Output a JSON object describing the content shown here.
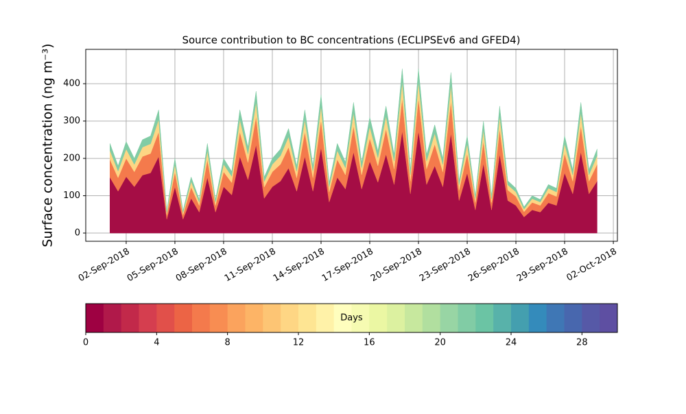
{
  "chart_data": {
    "type": "stacked_area",
    "title": "Source contribution to BC concentrations (ECLIPSEv6 and GFED4)",
    "y_label": "Surface concentration (ng m⁻³)",
    "x": [
      0,
      0.5,
      1,
      1.5,
      2,
      2.5,
      3,
      3.5,
      4,
      4.5,
      5,
      5.5,
      6,
      6.5,
      7,
      7.5,
      8,
      8.5,
      9,
      9.5,
      10,
      10.5,
      11,
      11.5,
      12,
      12.5,
      13,
      13.5,
      14,
      14.5,
      15,
      15.5,
      16,
      16.5,
      17,
      17.5,
      18,
      18.5,
      19,
      19.5,
      20,
      20.5,
      21,
      21.5,
      22,
      22.5,
      23,
      23.5,
      24,
      24.5,
      25,
      25.5,
      26,
      26.5,
      27,
      27.5,
      28,
      28.5,
      29,
      29.5,
      30
    ],
    "series": [
      {
        "color": "#a50d45",
        "values": [
          149,
          112,
          151,
          124,
          155,
          161,
          205,
          37,
          124,
          37,
          93,
          56,
          149,
          56,
          124,
          102,
          205,
          143,
          236,
          93,
          124,
          139,
          174,
          112,
          205,
          112,
          229,
          83,
          149,
          118,
          217,
          118,
          192,
          136,
          211,
          130,
          273,
          105,
          273,
          130,
          180,
          124,
          267,
          87,
          161,
          62,
          186,
          62,
          211,
          87,
          74,
          43,
          62,
          56,
          81,
          74,
          161,
          105,
          217,
          105,
          139
        ]
      },
      {
        "color": "#f47a4c",
        "values": [
          48,
          36,
          49,
          40,
          50,
          52,
          66,
          12,
          40,
          12,
          30,
          18,
          48,
          18,
          40,
          33,
          66,
          46,
          76,
          30,
          40,
          45,
          56,
          36,
          66,
          36,
          74,
          27,
          48,
          38,
          70,
          38,
          62,
          44,
          68,
          42,
          88,
          34,
          88,
          42,
          58,
          40,
          86,
          28,
          52,
          20,
          60,
          20,
          68,
          28,
          24,
          14,
          20,
          18,
          26,
          24,
          52,
          34,
          70,
          34,
          45
        ]
      },
      {
        "color": "#fdd684",
        "values": [
          24,
          18,
          25,
          20,
          25,
          26,
          33,
          6,
          20,
          6,
          15,
          9,
          24,
          9,
          20,
          17,
          33,
          23,
          38,
          15,
          20,
          23,
          28,
          18,
          33,
          18,
          37,
          14,
          24,
          19,
          35,
          19,
          31,
          22,
          34,
          21,
          44,
          17,
          44,
          21,
          29,
          20,
          43,
          14,
          26,
          10,
          30,
          10,
          34,
          14,
          12,
          7,
          10,
          9,
          13,
          12,
          26,
          17,
          35,
          17,
          23
        ]
      },
      {
        "color": "#81cca5",
        "values": [
          19,
          14,
          20,
          16,
          20,
          21,
          26,
          5,
          16,
          5,
          12,
          7,
          19,
          7,
          16,
          13,
          26,
          18,
          30,
          12,
          16,
          18,
          22,
          14,
          26,
          14,
          30,
          11,
          19,
          15,
          28,
          15,
          25,
          18,
          27,
          17,
          35,
          14,
          35,
          17,
          23,
          16,
          34,
          11,
          21,
          8,
          24,
          8,
          27,
          11,
          10,
          6,
          8,
          7,
          10,
          10,
          21,
          14,
          28,
          14,
          18
        ]
      }
    ],
    "xlim": [
      -1.49,
      31.25
    ],
    "xticks": [
      {
        "value": 1,
        "label": "02-Sep-2018"
      },
      {
        "value": 4,
        "label": "05-Sep-2018"
      },
      {
        "value": 7,
        "label": "08-Sep-2018"
      },
      {
        "value": 10,
        "label": "11-Sep-2018"
      },
      {
        "value": 13,
        "label": "14-Sep-2018"
      },
      {
        "value": 16,
        "label": "17-Sep-2018"
      },
      {
        "value": 19,
        "label": "20-Sep-2018"
      },
      {
        "value": 22,
        "label": "23-Sep-2018"
      },
      {
        "value": 25,
        "label": "26-Sep-2018"
      },
      {
        "value": 28,
        "label": "29-Sep-2018"
      },
      {
        "value": 31,
        "label": "02-Oct-2018"
      }
    ],
    "ylim": [
      -22,
      492
    ],
    "yticks": [
      0,
      100,
      200,
      300,
      400
    ],
    "grid": true,
    "colorbar": {
      "label": "Days",
      "lim": [
        0,
        30
      ],
      "ticks": [
        0,
        4,
        8,
        12,
        16,
        20,
        24,
        28
      ],
      "colors": [
        "#9e0142",
        "#b0194a",
        "#c2294a",
        "#d53e4f",
        "#e1504a",
        "#ec6445",
        "#f47a4c",
        "#f88d52",
        "#fba35d",
        "#fdb466",
        "#fdc574",
        "#fed684",
        "#fee593",
        "#fff2a8",
        "#fffebe",
        "#f6fbb2",
        "#ebf7a3",
        "#dcf1a0",
        "#c7e89e",
        "#b1df9f",
        "#98d5a4",
        "#81cca5",
        "#6bc4a4",
        "#58b2aa",
        "#449faf",
        "#348bbb",
        "#3f77b5",
        "#4867ae",
        "#5659a7",
        "#5e4fa2"
      ]
    }
  }
}
